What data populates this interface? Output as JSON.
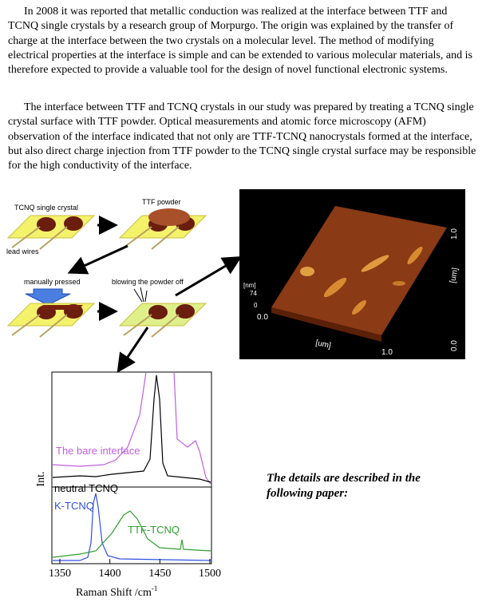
{
  "paragraphs": [
    "In 2008 it was reported that metallic conduction was realized at the interface between TTF and TCNQ single crystals by a research group of Morpurgo. The origin was explained by the transfer of charge at the interface between the two crystals on a molecular level. The method of modifying electrical properties at the interface is simple and can be extended to various molecular materials, and is therefore expected to provide a valuable tool for the design of novel functional electronic systems.",
    "The interface between TTF and TCNQ crystals in our study was prepared by treating a TCNQ single crystal surface with TTF powder. Optical measurements and atomic force microscopy (AFM) observation of the interface indicated that not only are TTF-TCNQ nanocrystals formed at the interface, but also direct charge injection from TTF powder to the TCNQ single crystal surface may be responsible for the high conductivity of the interface."
  ],
  "diagram": {
    "labels": [
      "TCNQ single crystal",
      "TTF powder",
      "lead wires",
      "manually pressed",
      "blowing the powder off"
    ]
  },
  "afm": {
    "labels": [
      "1.0",
      "[um]",
      "[nm]",
      "74",
      "0",
      "0.0",
      "[um]",
      "1.0",
      "0.0"
    ]
  },
  "raman": {
    "ylabel": "Int.",
    "xlabel": "Raman Shift /cm",
    "xlabel_sup": "-1",
    "xlim": [
      1350,
      1500
    ],
    "xticks": [
      1350,
      1400,
      1450,
      1500
    ],
    "curve_labels": [
      "The bare interface",
      "neutral TCNQ",
      "K-TCNQ",
      "TTF-TCNQ"
    ]
  },
  "note": "The details are described in the following paper:"
}
